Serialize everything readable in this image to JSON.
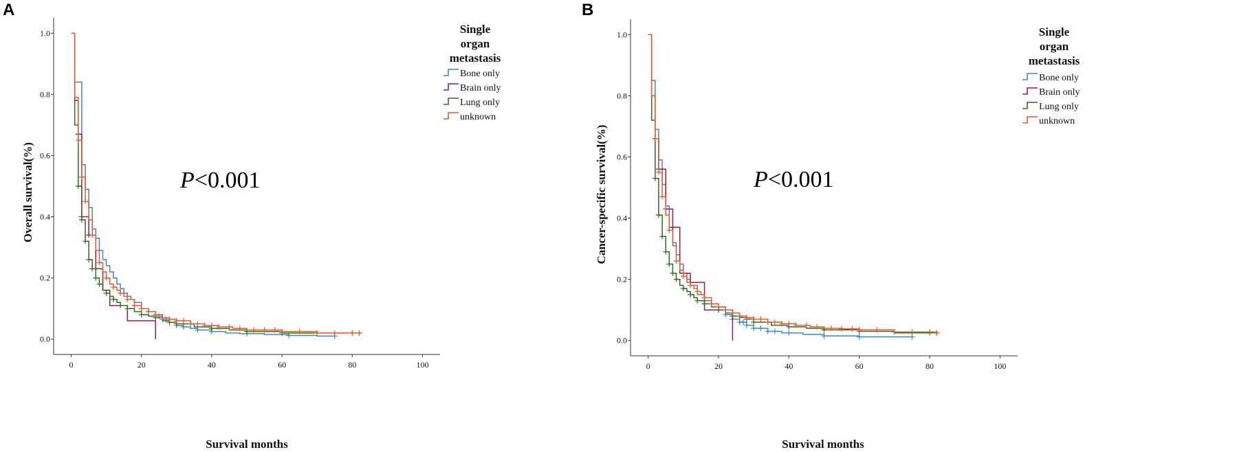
{
  "chart_data": [
    {
      "panel": "A",
      "type": "line",
      "ylabel": "Overall survival(%)",
      "xlabel": "Survival months",
      "xlim": [
        -5,
        105
      ],
      "ylim": [
        -0.05,
        1.05
      ],
      "xticks": [
        0,
        20,
        40,
        60,
        80,
        100
      ],
      "yticks": [
        0.0,
        0.2,
        0.4,
        0.6,
        0.8,
        1.0
      ],
      "tick_labels_x": [
        "0",
        "20",
        "40",
        "60",
        "80",
        "100"
      ],
      "tick_labels_y": [
        "0.0",
        "0.2",
        "0.4",
        "0.6",
        "0.8",
        "1.0"
      ],
      "annotation_p_italic": "P",
      "annotation_value": "<0.001",
      "legend": {
        "title_lines": [
          "Single",
          "organ",
          "metastasis"
        ]
      },
      "series": [
        {
          "name": "Bone only",
          "color": "#3a86c8",
          "x": [
            0,
            1,
            3,
            4,
            5,
            6,
            7,
            8,
            9,
            10,
            11,
            12,
            13,
            14,
            15,
            16,
            17,
            18,
            20,
            22,
            24,
            26,
            28,
            30,
            32,
            34,
            36,
            40,
            44,
            48,
            55,
            62,
            70,
            75
          ],
          "y": [
            1.0,
            0.84,
            0.57,
            0.49,
            0.43,
            0.36,
            0.33,
            0.29,
            0.26,
            0.24,
            0.22,
            0.2,
            0.18,
            0.165,
            0.15,
            0.14,
            0.13,
            0.12,
            0.1,
            0.09,
            0.075,
            0.065,
            0.055,
            0.045,
            0.04,
            0.035,
            0.03,
            0.025,
            0.02,
            0.018,
            0.015,
            0.012,
            0.01,
            0.01
          ],
          "censor_x": [
            20,
            22,
            24,
            25,
            26,
            27,
            28,
            30,
            32,
            36,
            40,
            50,
            62,
            75
          ]
        },
        {
          "name": "Brain only",
          "color": "#9b1b40",
          "x": [
            0,
            1,
            2,
            3,
            5,
            7,
            9,
            11,
            16,
            24
          ],
          "y": [
            1.0,
            0.78,
            0.67,
            0.4,
            0.34,
            0.23,
            0.16,
            0.11,
            0.06,
            0.0
          ],
          "censor_x": [
            2,
            3,
            5,
            7
          ]
        },
        {
          "name": "Lung only",
          "color": "#2e6b1e",
          "x": [
            0,
            1,
            2,
            3,
            4,
            5,
            6,
            7,
            8,
            9,
            10,
            11,
            12,
            13,
            14,
            16,
            18,
            20,
            22,
            24,
            26,
            28,
            30,
            35,
            40,
            45,
            50,
            60,
            70,
            82
          ],
          "y": [
            1.0,
            0.7,
            0.5,
            0.39,
            0.32,
            0.26,
            0.23,
            0.2,
            0.18,
            0.16,
            0.15,
            0.14,
            0.13,
            0.12,
            0.11,
            0.1,
            0.09,
            0.08,
            0.075,
            0.07,
            0.06,
            0.055,
            0.05,
            0.04,
            0.035,
            0.03,
            0.025,
            0.02,
            0.02,
            0.02
          ],
          "censor_x": [
            2,
            3,
            4,
            5,
            6,
            7,
            8,
            10,
            12,
            14,
            16,
            20,
            24,
            28,
            30,
            40,
            50,
            60,
            80,
            82
          ]
        },
        {
          "name": "unknown",
          "color": "#e8592b",
          "x": [
            0,
            1,
            2,
            3,
            4,
            5,
            6,
            7,
            8,
            9,
            10,
            11,
            12,
            13,
            14,
            15,
            16,
            18,
            20,
            22,
            24,
            26,
            28,
            30,
            34,
            38,
            42,
            46,
            50,
            55,
            60,
            70,
            82
          ],
          "y": [
            1.0,
            0.79,
            0.65,
            0.53,
            0.45,
            0.39,
            0.34,
            0.29,
            0.25,
            0.22,
            0.2,
            0.18,
            0.17,
            0.16,
            0.15,
            0.14,
            0.13,
            0.11,
            0.1,
            0.09,
            0.08,
            0.07,
            0.065,
            0.06,
            0.05,
            0.045,
            0.04,
            0.035,
            0.03,
            0.03,
            0.025,
            0.02,
            0.02
          ],
          "censor_x": [
            2,
            3,
            4,
            6,
            8,
            10,
            12,
            14,
            16,
            18,
            20,
            22,
            24,
            26,
            28,
            30,
            32,
            34,
            36,
            38,
            40,
            42,
            45,
            48,
            52,
            55,
            58,
            60,
            65,
            70,
            75,
            80,
            82
          ]
        }
      ]
    },
    {
      "panel": "B",
      "type": "line",
      "ylabel": "Cancer-specific survival(%)",
      "xlabel": "Survival months",
      "xlim": [
        -5,
        105
      ],
      "ylim": [
        -0.05,
        1.05
      ],
      "xticks": [
        0,
        20,
        40,
        60,
        80,
        100
      ],
      "yticks": [
        0.0,
        0.2,
        0.4,
        0.6,
        0.8,
        1.0
      ],
      "tick_labels_x": [
        "0",
        "20",
        "40",
        "60",
        "80",
        "100"
      ],
      "tick_labels_y": [
        "0.0",
        "0.2",
        "0.4",
        "0.6",
        "0.8",
        "1.0"
      ],
      "annotation_p_italic": "P",
      "annotation_value": "<0.001",
      "legend": {
        "title_lines": [
          "Single",
          "organ",
          "metastasis"
        ]
      },
      "series": [
        {
          "name": "Bone only",
          "color": "#3a86c8",
          "x": [
            0,
            1,
            2,
            3,
            4,
            5,
            6,
            7,
            8,
            9,
            10,
            11,
            12,
            14,
            16,
            18,
            20,
            22,
            24,
            26,
            28,
            30,
            34,
            38,
            44,
            50,
            60,
            75
          ],
          "y": [
            1.0,
            0.85,
            0.69,
            0.59,
            0.51,
            0.44,
            0.37,
            0.32,
            0.28,
            0.25,
            0.22,
            0.2,
            0.18,
            0.15,
            0.13,
            0.11,
            0.1,
            0.085,
            0.07,
            0.06,
            0.05,
            0.04,
            0.03,
            0.025,
            0.02,
            0.015,
            0.012,
            0.012
          ],
          "censor_x": [
            20,
            22,
            24,
            26,
            27,
            28,
            30,
            32,
            34,
            36,
            40,
            50,
            60,
            75
          ]
        },
        {
          "name": "Brain only",
          "color": "#9b1b40",
          "x": [
            0,
            1,
            2,
            3,
            5,
            7,
            9,
            12,
            16,
            24
          ],
          "y": [
            1.0,
            0.8,
            0.66,
            0.56,
            0.43,
            0.37,
            0.22,
            0.19,
            0.1,
            0.0
          ],
          "censor_x": [
            2,
            3,
            5,
            7
          ]
        },
        {
          "name": "Lung only",
          "color": "#2e6b1e",
          "x": [
            0,
            1,
            2,
            3,
            4,
            5,
            6,
            7,
            8,
            9,
            10,
            11,
            12,
            13,
            14,
            16,
            18,
            20,
            22,
            24,
            26,
            28,
            30,
            35,
            40,
            45,
            50,
            60,
            70,
            82
          ],
          "y": [
            1.0,
            0.72,
            0.53,
            0.41,
            0.34,
            0.29,
            0.25,
            0.22,
            0.2,
            0.18,
            0.17,
            0.16,
            0.15,
            0.14,
            0.13,
            0.12,
            0.11,
            0.1,
            0.09,
            0.08,
            0.075,
            0.07,
            0.06,
            0.05,
            0.045,
            0.04,
            0.035,
            0.03,
            0.025,
            0.025
          ],
          "censor_x": [
            2,
            3,
            4,
            5,
            6,
            7,
            8,
            10,
            12,
            14,
            16,
            20,
            24,
            28,
            30,
            40,
            50,
            60,
            80,
            82
          ]
        },
        {
          "name": "unknown",
          "color": "#e8592b",
          "x": [
            0,
            1,
            2,
            3,
            4,
            5,
            6,
            7,
            8,
            9,
            10,
            11,
            12,
            13,
            14,
            15,
            16,
            18,
            20,
            22,
            24,
            26,
            28,
            30,
            34,
            38,
            42,
            46,
            50,
            55,
            60,
            70,
            82
          ],
          "y": [
            1.0,
            0.8,
            0.66,
            0.55,
            0.47,
            0.41,
            0.36,
            0.31,
            0.26,
            0.23,
            0.21,
            0.19,
            0.18,
            0.17,
            0.16,
            0.15,
            0.14,
            0.12,
            0.11,
            0.1,
            0.09,
            0.08,
            0.075,
            0.07,
            0.06,
            0.055,
            0.05,
            0.045,
            0.04,
            0.038,
            0.035,
            0.028,
            0.025
          ],
          "censor_x": [
            2,
            3,
            4,
            6,
            8,
            10,
            12,
            14,
            16,
            18,
            20,
            22,
            24,
            26,
            28,
            30,
            32,
            34,
            36,
            38,
            40,
            42,
            45,
            48,
            52,
            55,
            58,
            60,
            65,
            70,
            75,
            80,
            82
          ]
        }
      ]
    }
  ]
}
